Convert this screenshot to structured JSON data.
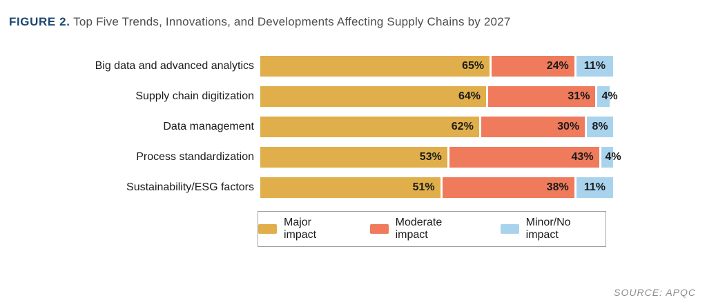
{
  "title": {
    "prefix": "FIGURE 2.",
    "text": " Top Five Trends, Innovations, and Developments Affecting Supply Chains by 2027"
  },
  "source": "SOURCE: APQC",
  "colors": {
    "major": "#e0ae4a",
    "moderate": "#ef7b5c",
    "minor": "#a9d3ed",
    "title_prefix": "#1c4770",
    "title_text": "#4d4d4d",
    "value_label": "#1b1b1b",
    "legend_border": "#a0a0a0",
    "source_text": "#8c8c8c"
  },
  "legend": [
    {
      "label": "Major impact",
      "color_key": "major"
    },
    {
      "label": "Moderate impact",
      "color_key": "moderate"
    },
    {
      "label": "Minor/No impact",
      "color_key": "minor"
    }
  ],
  "chart_data": {
    "type": "bar",
    "orientation": "horizontal",
    "stacked": true,
    "title": "Top Five Trends, Innovations, and Developments Affecting Supply Chains by 2027",
    "categories": [
      "Big data and advanced analytics",
      "Supply chain digitization",
      "Data management",
      "Process standardization",
      "Sustainability/ESG factors"
    ],
    "series": [
      {
        "name": "Major impact",
        "color_key": "major",
        "values": [
          65,
          64,
          62,
          53,
          51
        ]
      },
      {
        "name": "Moderate impact",
        "color_key": "moderate",
        "values": [
          24,
          31,
          30,
          43,
          38
        ]
      },
      {
        "name": "Minor/No impact",
        "color_key": "minor",
        "values": [
          11,
          4,
          8,
          4,
          11
        ]
      }
    ],
    "value_suffix": "%",
    "xlim": [
      0,
      100
    ],
    "grid": false,
    "legend_position": "bottom",
    "data_labels": "inside-end"
  }
}
